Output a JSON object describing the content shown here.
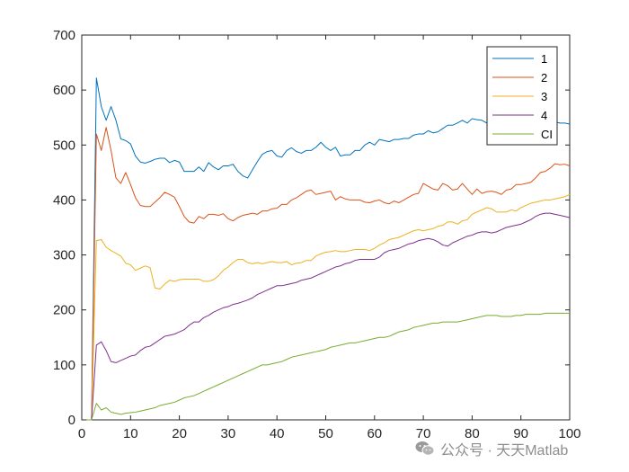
{
  "chart_data": {
    "type": "line",
    "title": "",
    "xlabel": "",
    "ylabel": "",
    "xlim": [
      0,
      100
    ],
    "ylim": [
      0,
      700
    ],
    "xticks": [
      0,
      10,
      20,
      30,
      40,
      50,
      60,
      70,
      80,
      90,
      100
    ],
    "yticks": [
      0,
      100,
      200,
      300,
      400,
      500,
      600,
      700
    ],
    "grid": false,
    "legend_position": "top-right",
    "x": [
      1,
      2,
      3,
      4,
      5,
      6,
      7,
      8,
      9,
      10,
      11,
      12,
      13,
      14,
      15,
      16,
      17,
      18,
      19,
      20,
      21,
      22,
      23,
      24,
      25,
      26,
      27,
      28,
      29,
      30,
      31,
      32,
      33,
      34,
      35,
      36,
      37,
      38,
      39,
      40,
      41,
      42,
      43,
      44,
      45,
      46,
      47,
      48,
      49,
      50,
      51,
      52,
      53,
      54,
      55,
      56,
      57,
      58,
      59,
      60,
      61,
      62,
      63,
      64,
      65,
      66,
      67,
      68,
      69,
      70,
      71,
      72,
      73,
      74,
      75,
      76,
      77,
      78,
      79,
      80,
      81,
      82,
      83,
      84,
      85,
      86,
      87,
      88,
      89,
      90,
      91,
      92,
      93,
      94,
      95,
      96,
      97,
      98,
      99,
      100
    ],
    "series": [
      {
        "name": "1",
        "color": "#0072BD",
        "values": [
          0,
          0,
          622,
          570,
          545,
          570,
          545,
          511,
          508,
          502,
          480,
          469,
          467,
          470,
          474,
          476,
          476,
          468,
          472,
          469,
          452,
          452,
          452,
          460,
          452,
          468,
          460,
          455,
          462,
          462,
          465,
          452,
          444,
          440,
          455,
          470,
          483,
          488,
          490,
          480,
          478,
          490,
          495,
          488,
          485,
          490,
          490,
          496,
          505,
          496,
          490,
          496,
          480,
          482,
          482,
          490,
          490,
          500,
          505,
          500,
          510,
          508,
          506,
          510,
          510,
          512,
          512,
          518,
          520,
          520,
          526,
          522,
          524,
          530,
          536,
          536,
          540,
          545,
          540,
          548,
          546,
          545,
          540,
          540,
          542,
          540,
          540,
          538,
          538,
          540,
          540,
          540,
          540,
          540,
          540,
          540,
          542,
          540,
          540,
          538
        ]
      },
      {
        "name": "2",
        "color": "#D95319",
        "values": [
          0,
          0,
          520,
          490,
          532,
          490,
          440,
          430,
          450,
          428,
          404,
          390,
          388,
          388,
          396,
          404,
          414,
          410,
          405,
          388,
          370,
          360,
          358,
          370,
          366,
          374,
          374,
          372,
          375,
          366,
          362,
          368,
          372,
          374,
          376,
          374,
          380,
          380,
          384,
          385,
          392,
          392,
          400,
          404,
          410,
          416,
          418,
          410,
          412,
          414,
          416,
          400,
          406,
          402,
          400,
          400,
          400,
          396,
          395,
          398,
          400,
          395,
          393,
          398,
          395,
          400,
          405,
          410,
          412,
          430,
          425,
          420,
          418,
          430,
          426,
          418,
          420,
          430,
          420,
          410,
          420,
          412,
          415,
          416,
          414,
          410,
          418,
          420,
          428,
          428,
          430,
          432,
          440,
          450,
          452,
          458,
          466,
          464,
          465,
          462
        ]
      },
      {
        "name": "3",
        "color": "#EDB120",
        "values": [
          0,
          0,
          326,
          328,
          314,
          308,
          303,
          298,
          285,
          282,
          272,
          276,
          280,
          277,
          240,
          238,
          247,
          254,
          252,
          255,
          256,
          256,
          256,
          256,
          252,
          252,
          255,
          262,
          272,
          278,
          286,
          292,
          292,
          286,
          284,
          286,
          284,
          286,
          288,
          286,
          286,
          288,
          282,
          285,
          286,
          290,
          290,
          298,
          302,
          305,
          306,
          308,
          306,
          306,
          308,
          310,
          310,
          310,
          308,
          312,
          318,
          322,
          328,
          330,
          332,
          336,
          340,
          344,
          346,
          344,
          346,
          348,
          352,
          354,
          360,
          360,
          356,
          362,
          364,
          374,
          378,
          382,
          386,
          384,
          378,
          378,
          378,
          382,
          380,
          386,
          390,
          394,
          396,
          398,
          400,
          400,
          402,
          404,
          406,
          410
        ]
      },
      {
        "name": "4",
        "color": "#7E2F8E",
        "values": [
          0,
          0,
          136,
          142,
          126,
          106,
          104,
          108,
          112,
          116,
          118,
          126,
          132,
          134,
          140,
          146,
          152,
          154,
          156,
          160,
          164,
          172,
          178,
          178,
          186,
          190,
          196,
          200,
          204,
          206,
          210,
          212,
          215,
          218,
          222,
          228,
          232,
          236,
          240,
          244,
          244,
          246,
          248,
          250,
          254,
          256,
          258,
          262,
          266,
          270,
          274,
          278,
          280,
          284,
          286,
          290,
          292,
          292,
          292,
          292,
          296,
          304,
          308,
          310,
          312,
          316,
          320,
          322,
          326,
          328,
          330,
          328,
          324,
          318,
          316,
          322,
          326,
          330,
          334,
          336,
          340,
          342,
          342,
          340,
          342,
          346,
          350,
          352,
          354,
          356,
          360,
          364,
          370,
          374,
          376,
          376,
          374,
          372,
          370,
          368
        ]
      },
      {
        "name": "CI",
        "color": "#77AC30",
        "values": [
          0,
          0,
          30,
          18,
          22,
          14,
          12,
          10,
          12,
          13,
          14,
          16,
          18,
          20,
          22,
          26,
          28,
          30,
          32,
          36,
          40,
          42,
          44,
          48,
          52,
          56,
          60,
          64,
          68,
          72,
          76,
          80,
          84,
          88,
          92,
          96,
          100,
          100,
          102,
          104,
          106,
          110,
          114,
          116,
          118,
          120,
          122,
          124,
          126,
          128,
          132,
          134,
          136,
          138,
          140,
          140,
          142,
          144,
          146,
          148,
          150,
          150,
          152,
          156,
          160,
          162,
          164,
          168,
          170,
          172,
          174,
          176,
          176,
          178,
          178,
          178,
          178,
          180,
          182,
          184,
          186,
          188,
          190,
          190,
          190,
          188,
          188,
          188,
          190,
          190,
          192,
          192,
          192,
          192,
          194,
          194,
          194,
          194,
          194,
          194
        ]
      }
    ]
  },
  "watermark": {
    "icon": "wechat-icon",
    "text": "公众号 · 天天Matlab"
  }
}
